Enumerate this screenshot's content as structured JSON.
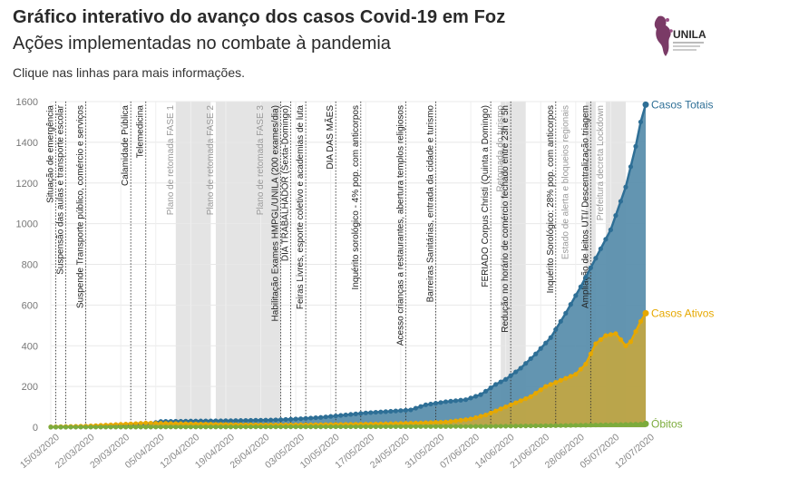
{
  "header": {
    "title": "Gráfico interativo do avanço dos casos Covid-19 em Foz",
    "subtitle": "Ações implementadas no combate à pandemia",
    "hint": "Clique nas linhas para mais informações."
  },
  "logo": {
    "text": "UNILA",
    "icon": "unila-logo-icon"
  },
  "chart_data": {
    "type": "area",
    "title": "Gráfico interativo do avanço dos casos Covid-19 em Foz",
    "subtitle": "Ações implementadas no combate à pandemia",
    "xlabel": "",
    "ylabel": "",
    "x_range": [
      "2020-03-15",
      "2020-07-12"
    ],
    "ylim": [
      0,
      1600
    ],
    "y_ticks": [
      0,
      200,
      400,
      600,
      800,
      1000,
      1200,
      1400,
      1600
    ],
    "x_ticks": [
      "15/03/2020",
      "22/03/2020",
      "29/03/2020",
      "05/04/2020",
      "12/04/2020",
      "19/04/2020",
      "26/04/2020",
      "03/05/2020",
      "10/05/2020",
      "17/05/2020",
      "24/05/2020",
      "31/05/2020",
      "07/06/2020",
      "14/06/2020",
      "21/06/2020",
      "28/06/2020",
      "05/07/2020",
      "12/07/2020"
    ],
    "grid": true,
    "legend": "end-of-line labels (right)",
    "series": [
      {
        "name": "Casos Totais",
        "color": "#2e6f96",
        "fill": "#5b8fad",
        "points": [
          [
            "2020-03-15",
            1
          ],
          [
            "2020-03-20",
            3
          ],
          [
            "2020-03-25",
            6
          ],
          [
            "2020-03-30",
            12
          ],
          [
            "2020-04-04",
            18
          ],
          [
            "2020-04-06",
            28
          ],
          [
            "2020-04-12",
            30
          ],
          [
            "2020-04-20",
            32
          ],
          [
            "2020-04-28",
            35
          ],
          [
            "2020-05-03",
            40
          ],
          [
            "2020-05-08",
            48
          ],
          [
            "2020-05-12",
            58
          ],
          [
            "2020-05-17",
            70
          ],
          [
            "2020-05-22",
            78
          ],
          [
            "2020-05-26",
            85
          ],
          [
            "2020-05-29",
            110
          ],
          [
            "2020-06-02",
            125
          ],
          [
            "2020-06-06",
            135
          ],
          [
            "2020-06-09",
            160
          ],
          [
            "2020-06-12",
            210
          ],
          [
            "2020-06-14",
            235
          ],
          [
            "2020-06-17",
            290
          ],
          [
            "2020-06-20",
            360
          ],
          [
            "2020-06-23",
            440
          ],
          [
            "2020-06-26",
            560
          ],
          [
            "2020-06-29",
            690
          ],
          [
            "2020-07-02",
            830
          ],
          [
            "2020-07-05",
            970
          ],
          [
            "2020-07-08",
            1180
          ],
          [
            "2020-07-10",
            1380
          ],
          [
            "2020-07-11",
            1500
          ],
          [
            "2020-07-12",
            1585
          ]
        ]
      },
      {
        "name": "Casos Ativos",
        "color": "#e6a800",
        "fill": "#c4a640",
        "points": [
          [
            "2020-03-15",
            1
          ],
          [
            "2020-03-22",
            5
          ],
          [
            "2020-03-29",
            14
          ],
          [
            "2020-04-03",
            20
          ],
          [
            "2020-04-08",
            18
          ],
          [
            "2020-04-15",
            15
          ],
          [
            "2020-04-22",
            12
          ],
          [
            "2020-04-29",
            11
          ],
          [
            "2020-05-06",
            12
          ],
          [
            "2020-05-13",
            14
          ],
          [
            "2020-05-20",
            16
          ],
          [
            "2020-05-27",
            20
          ],
          [
            "2020-06-02",
            25
          ],
          [
            "2020-06-07",
            40
          ],
          [
            "2020-06-10",
            60
          ],
          [
            "2020-06-13",
            90
          ],
          [
            "2020-06-16",
            120
          ],
          [
            "2020-06-19",
            150
          ],
          [
            "2020-06-22",
            200
          ],
          [
            "2020-06-25",
            230
          ],
          [
            "2020-06-28",
            260
          ],
          [
            "2020-06-30",
            310
          ],
          [
            "2020-07-02",
            410
          ],
          [
            "2020-07-04",
            450
          ],
          [
            "2020-07-06",
            460
          ],
          [
            "2020-07-08",
            400
          ],
          [
            "2020-07-09",
            420
          ],
          [
            "2020-07-10",
            470
          ],
          [
            "2020-07-11",
            520
          ],
          [
            "2020-07-12",
            560
          ]
        ]
      },
      {
        "name": "Óbitos",
        "color": "#7cab3c",
        "fill": "#7cab3c",
        "points": [
          [
            "2020-03-15",
            0
          ],
          [
            "2020-04-15",
            1
          ],
          [
            "2020-05-15",
            2
          ],
          [
            "2020-06-10",
            4
          ],
          [
            "2020-06-25",
            8
          ],
          [
            "2020-07-05",
            12
          ],
          [
            "2020-07-12",
            16
          ]
        ]
      }
    ],
    "shaded_periods": [
      {
        "from": "2020-04-09",
        "to": "2020-04-16"
      },
      {
        "from": "2020-04-17",
        "to": "2020-04-30"
      },
      {
        "from": "2020-06-13",
        "to": "2020-06-18"
      },
      {
        "from": "2020-06-30",
        "to": "2020-07-02"
      },
      {
        "from": "2020-07-04",
        "to": "2020-07-08"
      }
    ],
    "annotations": [
      {
        "date": "2020-03-16",
        "label": "Situação de emergência",
        "style": "dotted",
        "tone": "dark"
      },
      {
        "date": "2020-03-18",
        "label": "Suspensão das aulas e transporte escolar",
        "style": "dotted",
        "tone": "dark"
      },
      {
        "date": "2020-03-22",
        "label": "Suspende Transporte público, comércio e serviços",
        "style": "dotted",
        "tone": "dark"
      },
      {
        "date": "2020-03-31",
        "label": "Calamidade Pública",
        "style": "dotted",
        "tone": "dark"
      },
      {
        "date": "2020-04-03",
        "label": "Telemedicina",
        "style": "dotted",
        "tone": "dark"
      },
      {
        "date": "2020-04-09",
        "label": "Plano de retomada FASE 1",
        "style": "none",
        "tone": "grey"
      },
      {
        "date": "2020-04-17",
        "label": "Plano de retomada FASE 2",
        "style": "none",
        "tone": "grey"
      },
      {
        "date": "2020-04-27",
        "label": "Plano de retomada FASE 3",
        "style": "none",
        "tone": "grey"
      },
      {
        "date": "2020-04-30",
        "label": "Habilitação Exames HMPGL/UNILA (200 exames/dia)",
        "style": "dotted",
        "tone": "dark"
      },
      {
        "date": "2020-05-02",
        "label": "DIA TRABALHADOR (Sexta-Domingo)",
        "style": "dotted",
        "tone": "dark"
      },
      {
        "date": "2020-05-05",
        "label": "Feiras Livres, esporte coletivo e academias de luta",
        "style": "dotted",
        "tone": "dark"
      },
      {
        "date": "2020-05-11",
        "label": "DIA DAS MÃES",
        "style": "dotted",
        "tone": "dark"
      },
      {
        "date": "2020-05-16",
        "label": "Inquérito sorológico - 4% pop. com anticorpos",
        "style": "dotted",
        "tone": "dark"
      },
      {
        "date": "2020-05-25",
        "label": "Acesso crianças a restaurantes, abertura templos religiosos",
        "style": "dotted",
        "tone": "dark"
      },
      {
        "date": "2020-05-31",
        "label": "Barreiras Sanitárias, entrada da cidade e turismo",
        "style": "dotted",
        "tone": "dark"
      },
      {
        "date": "2020-06-11",
        "label": "FERIADO Corpus Christi (Quinta a Domingo)",
        "style": "dotted",
        "tone": "dark"
      },
      {
        "date": "2020-06-14",
        "label": "Retomada do turismo",
        "style": "none",
        "tone": "grey"
      },
      {
        "date": "2020-06-15",
        "label": "Redução no horário de comércio fechado entre 23h e 5h",
        "style": "dotted",
        "tone": "dark"
      },
      {
        "date": "2020-06-24",
        "label": "Inquérito Sorológico: 28% pop. com anticorpos",
        "style": "dotted",
        "tone": "dark"
      },
      {
        "date": "2020-06-27",
        "label": "Estado de alerta e bloqueios regionais",
        "style": "none",
        "tone": "grey"
      },
      {
        "date": "2020-07-01",
        "label": "Ampliação de leitos UTI/ Descentralização triagem",
        "style": "dotted",
        "tone": "dark"
      },
      {
        "date": "2020-07-04",
        "label": "Prefeitura decreta Lockdown",
        "style": "none",
        "tone": "grey"
      }
    ]
  }
}
